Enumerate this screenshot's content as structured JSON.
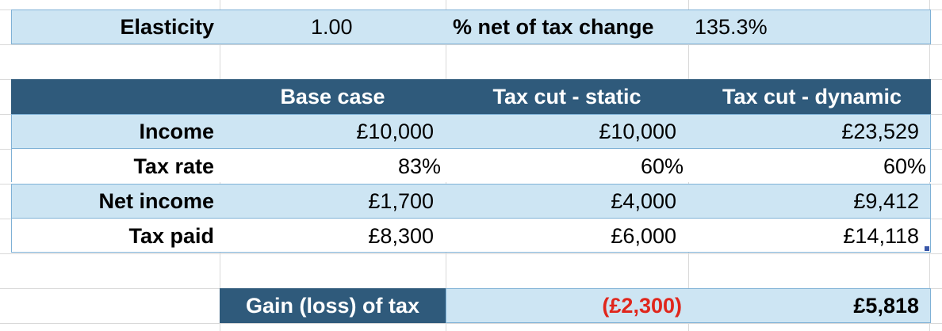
{
  "colors": {
    "light_band": "#cde5f3",
    "header_band": "#2f5a7b",
    "border": "#7fb1d6",
    "negative_text": "#e0261c",
    "gridline": "#d9d9d9"
  },
  "top": {
    "elasticity_label": "Elasticity",
    "elasticity_value": "1.00",
    "net_change_label": "% net of tax change",
    "net_change_value": "135.3%"
  },
  "table": {
    "headers": [
      "Base case",
      "Tax cut - static",
      "Tax cut - dynamic"
    ],
    "rows": [
      {
        "label": "Income",
        "values": [
          "£10,000",
          "£10,000",
          "£23,529"
        ]
      },
      {
        "label": "Tax rate",
        "values": [
          "83%",
          "60%",
          "60%"
        ]
      },
      {
        "label": "Net income",
        "values": [
          "£1,700",
          "£4,000",
          "£9,412"
        ]
      },
      {
        "label": "Tax paid",
        "values": [
          "£8,300",
          "£6,000",
          "£14,118"
        ]
      }
    ]
  },
  "gain": {
    "label": "Gain (loss) of tax",
    "static_value": "(£2,300)",
    "dynamic_value": "£5,818"
  }
}
